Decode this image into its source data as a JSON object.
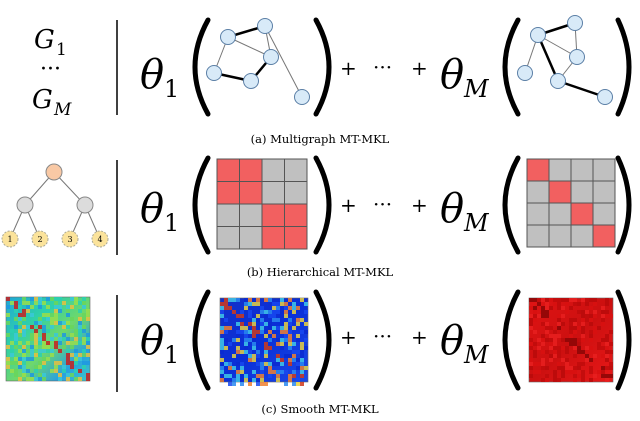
{
  "rows": [
    {
      "id": "multigraph",
      "left_labels": [
        "G",
        "1",
        "···",
        "G",
        "M"
      ],
      "theta_first": "θ",
      "theta_first_sub": "1",
      "theta_last": "θ",
      "theta_last_sub": "M",
      "plus": "+",
      "dots": "···",
      "caption": "(a) Multigraph MT-MKL"
    },
    {
      "id": "hierarchical",
      "tree_leaves": [
        "1",
        "2",
        "3",
        "4"
      ],
      "theta_first": "θ",
      "theta_first_sub": "1",
      "theta_last": "θ",
      "theta_last_sub": "M",
      "plus": "+",
      "dots": "···",
      "grid_first_active": [
        [
          0,
          0
        ],
        [
          0,
          1
        ],
        [
          1,
          0
        ],
        [
          1,
          1
        ],
        [
          2,
          2
        ],
        [
          2,
          3
        ],
        [
          3,
          2
        ],
        [
          3,
          3
        ]
      ],
      "grid_last_active": [
        [
          0,
          0
        ],
        [
          1,
          1
        ],
        [
          2,
          2
        ],
        [
          3,
          3
        ]
      ],
      "caption": "(b) Hierarchical MT-MKL"
    },
    {
      "id": "smooth",
      "theta_first": "θ",
      "theta_first_sub": "1",
      "theta_last": "θ",
      "theta_last_sub": "M",
      "plus": "+",
      "dots": "···",
      "caption": "(c) Smooth MT-MKL"
    }
  ],
  "colors": {
    "grid_active": "#f26060",
    "grid_inactive": "#c0c0c0",
    "tree_root": "#f9c9a5",
    "tree_internal": "#dcdcdc",
    "tree_leaf": "#fbe39b",
    "node_fill": "#d8eaf8"
  }
}
